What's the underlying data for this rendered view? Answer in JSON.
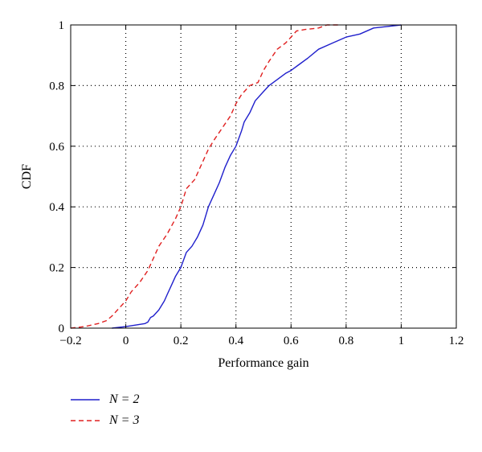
{
  "chart_data": {
    "type": "line",
    "title": "",
    "xlabel": "Performance gain",
    "ylabel": "CDF",
    "xlim": [
      -0.2,
      1.2
    ],
    "ylim": [
      0,
      1
    ],
    "xticks": [
      -0.2,
      0,
      0.2,
      0.4,
      0.6,
      0.8,
      1,
      1.2
    ],
    "xtick_labels": [
      "−0.2",
      "0",
      "0.2",
      "0.4",
      "0.6",
      "0.8",
      "1",
      "1.2"
    ],
    "yticks": [
      0,
      0.2,
      0.4,
      0.6,
      0.8,
      1
    ],
    "ytick_labels": [
      "0",
      "0.2",
      "0.4",
      "0.6",
      "0.8",
      "1"
    ],
    "grid": true,
    "legend_position": "below-left",
    "series": [
      {
        "name": "N = 2",
        "color": "#1f1fcc",
        "dash": "solid",
        "x": [
          -0.05,
          0.0,
          0.07,
          0.08,
          0.09,
          0.1,
          0.12,
          0.14,
          0.15,
          0.17,
          0.18,
          0.2,
          0.22,
          0.24,
          0.26,
          0.28,
          0.3,
          0.32,
          0.34,
          0.36,
          0.38,
          0.4,
          0.42,
          0.43,
          0.45,
          0.47,
          0.5,
          0.52,
          0.55,
          0.58,
          0.6,
          0.63,
          0.66,
          0.7,
          0.75,
          0.8,
          0.85,
          0.9,
          0.95,
          1.0
        ],
        "y": [
          0.0,
          0.005,
          0.015,
          0.02,
          0.035,
          0.04,
          0.06,
          0.09,
          0.11,
          0.15,
          0.17,
          0.2,
          0.25,
          0.27,
          0.3,
          0.34,
          0.4,
          0.44,
          0.48,
          0.53,
          0.57,
          0.6,
          0.65,
          0.68,
          0.71,
          0.75,
          0.78,
          0.8,
          0.82,
          0.84,
          0.85,
          0.87,
          0.89,
          0.92,
          0.94,
          0.96,
          0.97,
          0.99,
          0.995,
          1.0
        ]
      },
      {
        "name": "N = 3",
        "color": "#e02020",
        "dash": "dashed",
        "x": [
          -0.2,
          -0.15,
          -0.1,
          -0.07,
          -0.05,
          -0.02,
          0.0,
          0.02,
          0.05,
          0.08,
          0.1,
          0.12,
          0.15,
          0.18,
          0.2,
          0.22,
          0.25,
          0.28,
          0.3,
          0.32,
          0.35,
          0.38,
          0.4,
          0.42,
          0.45,
          0.48,
          0.5,
          0.52,
          0.55,
          0.58,
          0.6,
          0.62,
          0.65,
          0.7,
          0.73,
          0.77
        ],
        "y": [
          0.0,
          0.005,
          0.015,
          0.025,
          0.04,
          0.07,
          0.09,
          0.12,
          0.15,
          0.19,
          0.23,
          0.27,
          0.31,
          0.36,
          0.4,
          0.46,
          0.49,
          0.55,
          0.59,
          0.62,
          0.66,
          0.7,
          0.74,
          0.77,
          0.8,
          0.81,
          0.85,
          0.88,
          0.92,
          0.94,
          0.96,
          0.98,
          0.985,
          0.99,
          1.0,
          1.0
        ]
      }
    ]
  },
  "legend": {
    "items": [
      {
        "label": "N = 2",
        "color": "#1f1fcc",
        "dash": "solid"
      },
      {
        "label": "N = 3",
        "color": "#e02020",
        "dash": "dashed"
      }
    ]
  }
}
